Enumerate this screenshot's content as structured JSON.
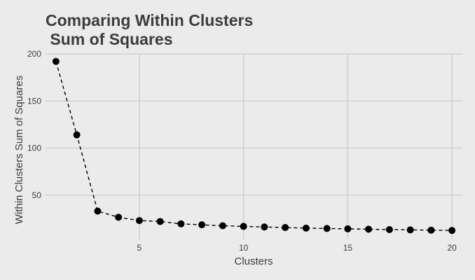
{
  "chart_data": {
    "type": "line",
    "title_lines": [
      "Comparing Within Clusters",
      " Sum of Squares"
    ],
    "xlabel": "Clusters",
    "ylabel": "Within Clusters Sum of Squares",
    "x_ticks": [
      5,
      10,
      15,
      20
    ],
    "y_ticks": [
      50,
      100,
      150,
      200
    ],
    "xlim": [
      0.5,
      20.5
    ],
    "ylim": [
      3,
      200
    ],
    "grid": true,
    "line_style": "dashed",
    "colors": {
      "background": "#ebebeb",
      "grid": "#cbcbcb",
      "line": "#000000",
      "points": "#000000",
      "text": "#3c3c3c"
    },
    "x": [
      1,
      2,
      3,
      4,
      5,
      6,
      7,
      8,
      9,
      10,
      11,
      12,
      13,
      14,
      15,
      16,
      17,
      18,
      19,
      20
    ],
    "y": [
      192,
      114,
      33,
      26.5,
      23,
      22,
      19.5,
      18.5,
      17.5,
      16.8,
      16.2,
      15.6,
      15.0,
      14.6,
      14.2,
      13.8,
      13.4,
      13.1,
      12.8,
      12.5
    ]
  }
}
